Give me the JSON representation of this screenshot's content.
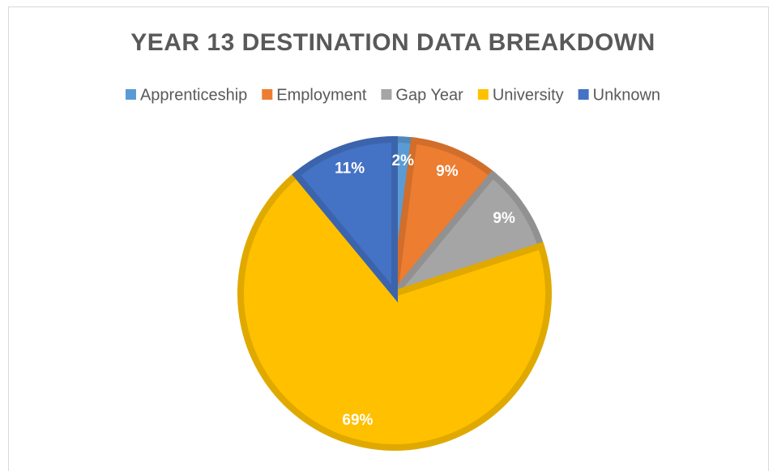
{
  "chart_data": {
    "type": "pie",
    "title": "YEAR 13 DESTINATION DATA BREAKDOWN",
    "categories": [
      "Apprenticeship",
      "Employment",
      "Gap Year",
      "University",
      "Unknown"
    ],
    "values": [
      2,
      9,
      9,
      69,
      11
    ],
    "value_labels": [
      "2%",
      "9%",
      "9%",
      "69%",
      "11%"
    ],
    "colors": [
      "#5b9bd5",
      "#ed7d31",
      "#a5a5a5",
      "#ffc000",
      "#4472c4"
    ],
    "legend": "top"
  }
}
